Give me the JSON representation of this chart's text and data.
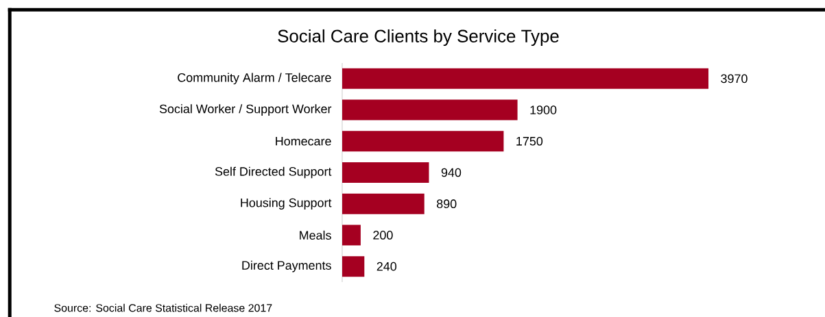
{
  "chart_data": {
    "type": "bar",
    "orientation": "horizontal",
    "title": "Social Care Clients by Service Type",
    "categories": [
      "Community Alarm / Telecare",
      "Social Worker / Support Worker",
      "Homecare",
      "Self Directed Support",
      "Housing Support",
      "Meals",
      "Direct Payments"
    ],
    "values": [
      3970,
      1900,
      1750,
      940,
      890,
      200,
      240
    ],
    "color": "#a50021",
    "data_labels": true,
    "annotations": [
      "Source: Social Care Statistical Release 2017"
    ]
  }
}
